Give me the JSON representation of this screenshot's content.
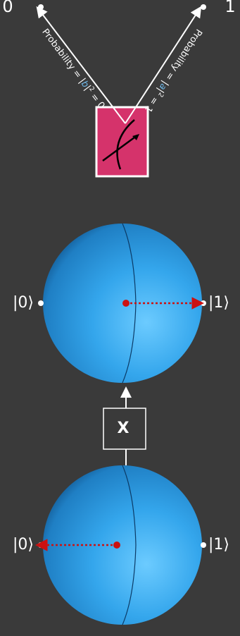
{
  "colors": {
    "background": "#3a3a3a",
    "sphere": "#2f9fe8",
    "sphere_highlight": "#58c0ff",
    "state_vector": "#cc1111",
    "measurement_box": "#d5336b",
    "amplitude_symbol": "#6fb8e8"
  },
  "stage1": {
    "ket_zero": "|0⟩",
    "ket_one": "|1⟩",
    "state": "0"
  },
  "gate": {
    "label": "X"
  },
  "stage2": {
    "ket_zero": "|0⟩",
    "ket_one": "|1⟩",
    "state": "1"
  },
  "measurement": {
    "icon": "meter-icon",
    "outcome_zero": "0",
    "outcome_one": "1",
    "prob_zero": {
      "prefix": "Probability = |",
      "symbol": "b",
      "suffix": "|",
      "exponent": "2",
      "value": " = 0"
    },
    "prob_one": {
      "prefix": "Probability = |",
      "symbol": "a",
      "suffix": "|",
      "exponent": "2",
      "value": " = 1"
    }
  }
}
